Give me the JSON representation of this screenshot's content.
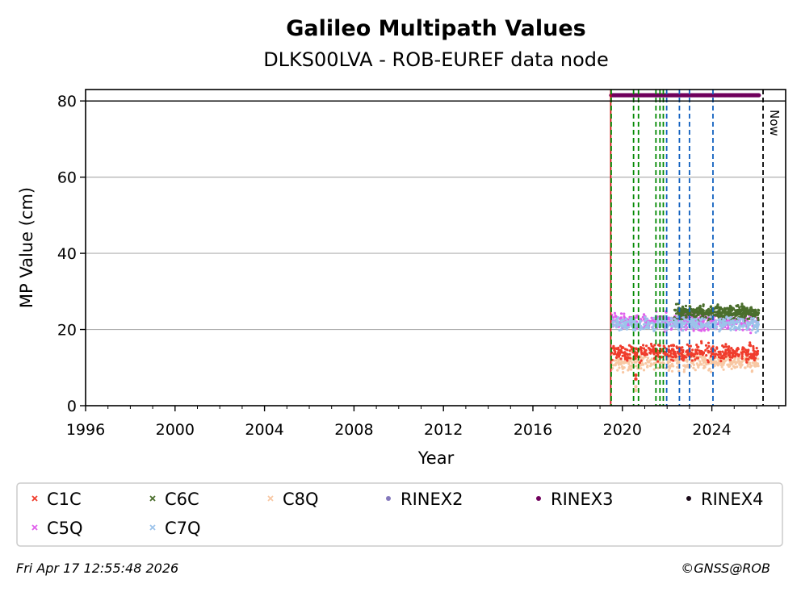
{
  "chart_data": {
    "type": "scatter",
    "title": "Galileo Multipath Values",
    "subtitle": "DLKS00LVA - ROB-EUREF data node",
    "xlabel": "Year",
    "ylabel": "MP Value (cm)",
    "xlim": [
      1996,
      2027.3
    ],
    "ylim": [
      0,
      83
    ],
    "x_ticks": [
      1996,
      2000,
      2004,
      2008,
      2012,
      2016,
      2020,
      2024
    ],
    "y_ticks": [
      0,
      20,
      40,
      60,
      80
    ],
    "grid": "y",
    "reference_line_y": 80,
    "now": {
      "x": 2026.29,
      "label": "Now"
    },
    "series": [
      {
        "name": "C1C",
        "color": "#f03c2c",
        "marker": "x",
        "x_range": [
          2019.5,
          2026.1
        ],
        "typical": 14,
        "spread": 1.5,
        "points": [
          [
            2020.6,
            8
          ],
          [
            2020.6,
            7
          ]
        ]
      },
      {
        "name": "C5Q",
        "color": "#e060ec",
        "marker": "x",
        "x_range": [
          2019.5,
          2026.1
        ],
        "typical": 22,
        "spread": 1.5,
        "points": []
      },
      {
        "name": "C6C",
        "color": "#4a6e2c",
        "marker": "x",
        "x_range": [
          2022.3,
          2026.1
        ],
        "typical": 24.5,
        "spread": 1.3,
        "points": []
      },
      {
        "name": "C7Q",
        "color": "#9cc3ea",
        "marker": "x",
        "x_range": [
          2019.5,
          2026.1
        ],
        "typical": 21.5,
        "spread": 1.2,
        "points": []
      },
      {
        "name": "C8Q",
        "color": "#f8c8a4",
        "marker": "x",
        "x_range": [
          2019.5,
          2026.1
        ],
        "typical": 11.5,
        "spread": 1.5,
        "points": [
          [
            2020.6,
            5
          ],
          [
            2020.6,
            4
          ]
        ]
      },
      {
        "name": "RINEX2",
        "color": "#8478bc",
        "marker": "o",
        "points": []
      },
      {
        "name": "RINEX3",
        "color": "#70005c",
        "marker": "o",
        "x_range": [
          2019.5,
          2026.1
        ],
        "y": 81.5,
        "points": []
      },
      {
        "name": "RINEX4",
        "color": "#1a0a18",
        "marker": "o",
        "points": []
      }
    ],
    "vlines": [
      {
        "x": 2019.48,
        "color": "#d01010",
        "style": "solid"
      },
      {
        "x": 2019.5,
        "color": "#008800",
        "style": "dashed"
      },
      {
        "x": 2020.5,
        "color": "#008800",
        "style": "dashed"
      },
      {
        "x": 2020.72,
        "color": "#008800",
        "style": "dashed"
      },
      {
        "x": 2021.5,
        "color": "#008800",
        "style": "dashed"
      },
      {
        "x": 2021.68,
        "color": "#008800",
        "style": "dashed"
      },
      {
        "x": 2021.83,
        "color": "#008800",
        "style": "dashed"
      },
      {
        "x": 2021.98,
        "color": "#1060c0",
        "style": "dashed"
      },
      {
        "x": 2022.55,
        "color": "#1060c0",
        "style": "dashed"
      },
      {
        "x": 2023.0,
        "color": "#1060c0",
        "style": "dashed"
      },
      {
        "x": 2024.05,
        "color": "#1060c0",
        "style": "dashed"
      },
      {
        "x": 2026.29,
        "color": "#000000",
        "style": "dashed"
      }
    ],
    "legend": "bottom"
  },
  "footer": {
    "timestamp": "Fri Apr 17 12:55:48 2026",
    "credit": "©GNSS@ROB"
  }
}
